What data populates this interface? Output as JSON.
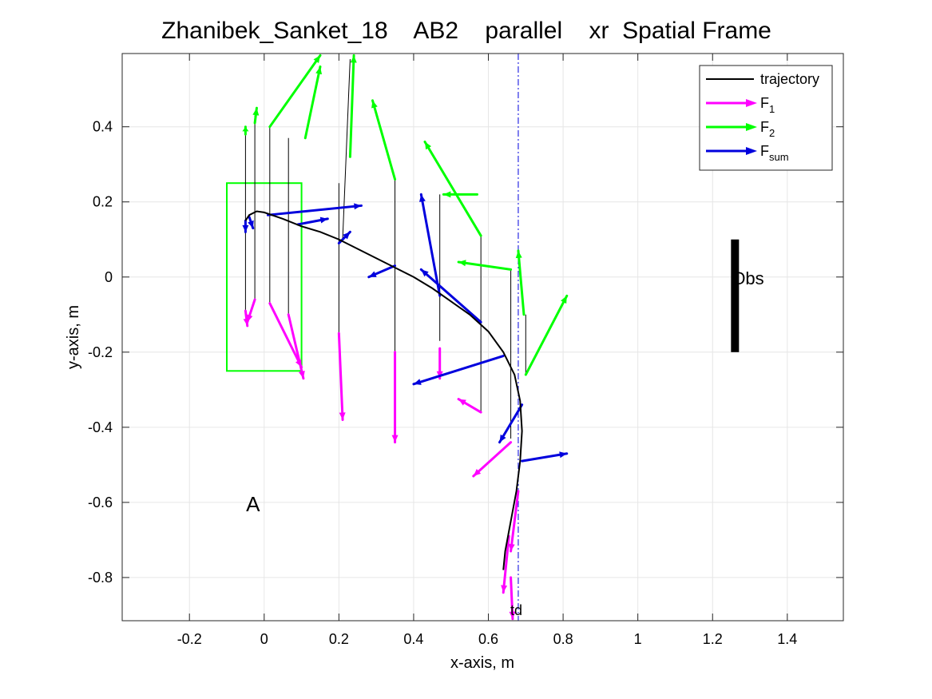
{
  "chart_data": {
    "type": "line",
    "title": "Zhanibek_Sanket_18    AB2    parallel    xr  Spatial Frame",
    "xlabel": "x-axis, m",
    "ylabel": "y-axis, m",
    "xlim": [
      -0.38,
      1.55
    ],
    "ylim": [
      -0.915,
      0.595
    ],
    "xticks": [
      -0.2,
      0,
      0.2,
      0.4,
      0.6,
      0.8,
      1,
      1.2,
      1.4
    ],
    "xtick_labels": [
      "-0.2",
      "0",
      "0.2",
      "0.4",
      "0.6",
      "0.8",
      "1",
      "1.2",
      "1.4"
    ],
    "yticks": [
      -0.8,
      -0.6,
      -0.4,
      -0.2,
      0,
      0.2,
      0.4
    ],
    "ytick_labels": [
      "-0.8",
      "-0.6",
      "-0.4",
      "-0.2",
      "0",
      "0.2",
      "0.4"
    ],
    "grid": true,
    "legend": {
      "placement": "top-right",
      "entries": [
        {
          "label": "trajectory",
          "sub": "",
          "color": "#000000"
        },
        {
          "label": "F",
          "sub": "1",
          "color": "#ff00ff"
        },
        {
          "label": "F",
          "sub": "2",
          "color": "#00ff00"
        },
        {
          "label": "F",
          "sub": "sum",
          "color": "#0000dd"
        }
      ]
    },
    "trajectory": [
      [
        -0.05,
        0.15
      ],
      [
        -0.04,
        0.165
      ],
      [
        -0.02,
        0.175
      ],
      [
        0,
        0.172
      ],
      [
        0.05,
        0.155
      ],
      [
        0.1,
        0.135
      ],
      [
        0.15,
        0.12
      ],
      [
        0.2,
        0.1
      ],
      [
        0.25,
        0.075
      ],
      [
        0.3,
        0.05
      ],
      [
        0.35,
        0.025
      ],
      [
        0.4,
        0
      ],
      [
        0.45,
        -0.03
      ],
      [
        0.5,
        -0.065
      ],
      [
        0.55,
        -0.1
      ],
      [
        0.6,
        -0.145
      ],
      [
        0.64,
        -0.2
      ],
      [
        0.67,
        -0.26
      ],
      [
        0.685,
        -0.33
      ],
      [
        0.69,
        -0.41
      ],
      [
        0.685,
        -0.49
      ],
      [
        0.675,
        -0.57
      ],
      [
        0.66,
        -0.65
      ],
      [
        0.645,
        -0.73
      ],
      [
        0.64,
        -0.78
      ]
    ],
    "start_box": {
      "x": [
        -0.1,
        0.1
      ],
      "y": [
        -0.25,
        0.25
      ],
      "color": "#00ff00"
    },
    "target_line": {
      "x": 0.68,
      "color": "#0000dd",
      "label": "td"
    },
    "obstacle": {
      "x": 1.26,
      "y": [
        -0.2,
        0.1
      ],
      "label": "Obs"
    },
    "start_label": {
      "text": "A",
      "x": -0.03,
      "y": -0.605
    },
    "connectors": [
      [
        [
          -0.05,
          -0.09
        ],
        [
          -0.05,
          0.38
        ]
      ],
      [
        [
          -0.025,
          -0.06
        ],
        [
          -0.025,
          0.43
        ]
      ],
      [
        [
          0.015,
          -0.07
        ],
        [
          0.015,
          0.4
        ]
      ],
      [
        [
          0.065,
          -0.1
        ],
        [
          0.065,
          0.37
        ]
      ],
      [
        [
          0.2,
          -0.15
        ],
        [
          0.2,
          0.25
        ]
      ],
      [
        [
          0.21,
          0.1
        ],
        [
          0.23,
          0.58
        ]
      ],
      [
        [
          0.35,
          -0.2
        ],
        [
          0.35,
          0.26
        ]
      ],
      [
        [
          0.47,
          -0.17
        ],
        [
          0.47,
          0.22
        ]
      ],
      [
        [
          0.58,
          -0.36
        ],
        [
          0.58,
          0.11
        ]
      ],
      [
        [
          0.66,
          -0.43
        ],
        [
          0.66,
          0.02
        ]
      ],
      [
        [
          0.7,
          -0.1
        ],
        [
          0.7,
          -0.26
        ]
      ]
    ],
    "series": [
      {
        "name": "F1",
        "color": "#ff00ff",
        "arrows": [
          [
            [
              -0.05,
              -0.09
            ],
            [
              -0.045,
              -0.13
            ]
          ],
          [
            [
              -0.025,
              -0.06
            ],
            [
              -0.045,
              -0.12
            ]
          ],
          [
            [
              0.015,
              -0.07
            ],
            [
              0.1,
              -0.24
            ]
          ],
          [
            [
              0.065,
              -0.1
            ],
            [
              0.105,
              -0.27
            ]
          ],
          [
            [
              0.2,
              -0.15
            ],
            [
              0.21,
              -0.38
            ]
          ],
          [
            [
              0.35,
              -0.2
            ],
            [
              0.35,
              -0.44
            ]
          ],
          [
            [
              0.47,
              -0.19
            ],
            [
              0.47,
              -0.27
            ]
          ],
          [
            [
              0.58,
              -0.36
            ],
            [
              0.52,
              -0.325
            ]
          ],
          [
            [
              0.66,
              -0.44
            ],
            [
              0.56,
              -0.53
            ]
          ],
          [
            [
              0.655,
              -0.69
            ],
            [
              0.64,
              -0.84
            ]
          ],
          [
            [
              0.66,
              -0.8
            ],
            [
              0.665,
              -0.91
            ]
          ],
          [
            [
              0.68,
              -0.57
            ],
            [
              0.66,
              -0.73
            ]
          ]
        ]
      },
      {
        "name": "F2",
        "color": "#00ff00",
        "arrows": [
          [
            [
              -0.05,
              0.38
            ],
            [
              -0.05,
              0.4
            ]
          ],
          [
            [
              -0.025,
              0.41
            ],
            [
              -0.02,
              0.45
            ]
          ],
          [
            [
              0.015,
              0.4
            ],
            [
              0.15,
              0.59
            ]
          ],
          [
            [
              0.11,
              0.37
            ],
            [
              0.15,
              0.56
            ]
          ],
          [
            [
              0.23,
              0.32
            ],
            [
              0.24,
              0.59
            ]
          ],
          [
            [
              0.35,
              0.26
            ],
            [
              0.29,
              0.47
            ]
          ],
          [
            [
              0.58,
              0.11
            ],
            [
              0.43,
              0.36
            ]
          ],
          [
            [
              0.57,
              0.22
            ],
            [
              0.48,
              0.22
            ]
          ],
          [
            [
              0.66,
              0.02
            ],
            [
              0.52,
              0.04
            ]
          ],
          [
            [
              0.695,
              -0.1
            ],
            [
              0.68,
              0.07
            ]
          ],
          [
            [
              0.7,
              -0.26
            ],
            [
              0.81,
              -0.05
            ]
          ]
        ]
      },
      {
        "name": "Fsum",
        "color": "#0000dd",
        "arrows": [
          [
            [
              -0.05,
              0.15
            ],
            [
              -0.05,
              0.12
            ]
          ],
          [
            [
              -0.04,
              0.16
            ],
            [
              -0.03,
              0.13
            ]
          ],
          [
            [
              0.01,
              0.165
            ],
            [
              0.26,
              0.19
            ]
          ],
          [
            [
              0.09,
              0.14
            ],
            [
              0.17,
              0.155
            ]
          ],
          [
            [
              0.2,
              0.09
            ],
            [
              0.23,
              0.12
            ]
          ],
          [
            [
              0.35,
              0.03
            ],
            [
              0.28,
              0
            ]
          ],
          [
            [
              0.47,
              -0.05
            ],
            [
              0.42,
              0.22
            ]
          ],
          [
            [
              0.58,
              -0.12
            ],
            [
              0.42,
              0.02
            ]
          ],
          [
            [
              0.64,
              -0.21
            ],
            [
              0.4,
              -0.285
            ]
          ],
          [
            [
              0.69,
              -0.34
            ],
            [
              0.63,
              -0.44
            ]
          ],
          [
            [
              0.69,
              -0.49
            ],
            [
              0.81,
              -0.47
            ]
          ]
        ]
      }
    ]
  }
}
